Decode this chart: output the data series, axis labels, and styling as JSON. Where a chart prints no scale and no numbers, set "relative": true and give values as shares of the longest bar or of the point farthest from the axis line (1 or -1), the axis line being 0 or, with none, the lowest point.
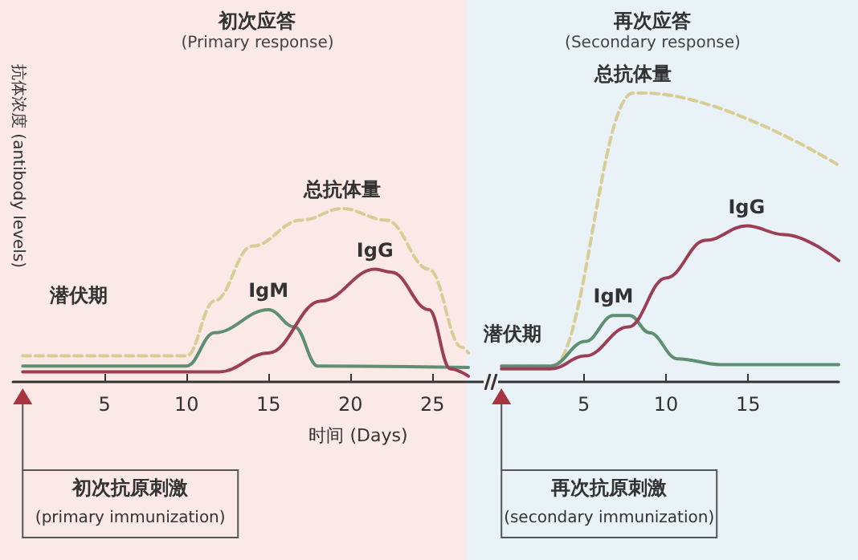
{
  "chart_data": {
    "type": "line",
    "ylabel": "抗体浓度 (antibody levels)",
    "xlabel": "时间 (Days)",
    "relative": true,
    "marker": "none",
    "xlim": [
      -0.6,
      49.8
    ],
    "xticks": [
      5,
      10,
      15,
      20,
      25
    ],
    "x2lim": [
      -29.7,
      20.5
    ],
    "x2ticks": [
      5,
      10,
      15
    ],
    "bands": [
      {
        "axis": "x",
        "from": -0.6,
        "to": 27.1,
        "label": "初次应答\n(Primary response)",
        "color": "#fbe9e8"
      },
      {
        "axis": "x",
        "from": 27.1,
        "to": 49.8,
        "label": "再次应答\n(Secondary response)",
        "color": "#e9f2f7"
      }
    ],
    "series": [
      {
        "name": "总抗体量",
        "color": "#d9cc95",
        "line_style": "dashed",
        "x": [
          0,
          10,
          11.7,
          14,
          17,
          19.5,
          22.2,
          24.8,
          26.8,
          27.2
        ],
        "values": [
          0.09,
          0.09,
          0.28,
          0.47,
          0.56,
          0.6,
          0.56,
          0.39,
          0.12,
          0.1
        ]
      },
      {
        "name": "IgM",
        "color": "#5f8f72",
        "x": [
          0,
          10,
          11.7,
          15,
          16.6,
          18,
          27.2
        ],
        "values": [
          0.055,
          0.055,
          0.17,
          0.25,
          0.19,
          0.055,
          0.05
        ]
      },
      {
        "name": "IgG",
        "color": "#9b3f57",
        "x": [
          0,
          12,
          15,
          18.2,
          21.5,
          22.5,
          24.8,
          26.1,
          27.2
        ],
        "values": [
          0.035,
          0.035,
          0.1,
          0.28,
          0.39,
          0.38,
          0.25,
          0.045,
          0.02
        ]
      },
      {
        "name": "总抗体量",
        "color": "#d9cc95",
        "line_style": "dashed",
        "axis": "x2",
        "x": [
          0,
          3.1,
          8,
          8.7,
          20.5
        ],
        "values": [
          0.055,
          0.055,
          1,
          1,
          0.75
        ]
      },
      {
        "name": "IgM",
        "color": "#5f8f72",
        "axis": "x2",
        "x": [
          0,
          3,
          5.1,
          6.8,
          7.8,
          9,
          10.7,
          13.3,
          20.5
        ],
        "values": [
          0.055,
          0.055,
          0.14,
          0.23,
          0.23,
          0.17,
          0.08,
          0.06,
          0.06
        ]
      },
      {
        "name": "IgG",
        "color": "#9b3f57",
        "axis": "x2",
        "x": [
          0,
          3,
          5.1,
          7.7,
          10,
          12.4,
          14.9,
          17.2,
          20.5
        ],
        "values": [
          0.045,
          0.045,
          0.09,
          0.19,
          0.36,
          0.49,
          0.54,
          0.51,
          0.42
        ]
      }
    ],
    "annotations": [
      "潜伏期",
      "潜伏期",
      "初次抗原刺激\n(primary immunization)",
      "再次抗原刺激\n(secondary immunization)"
    ]
  }
}
